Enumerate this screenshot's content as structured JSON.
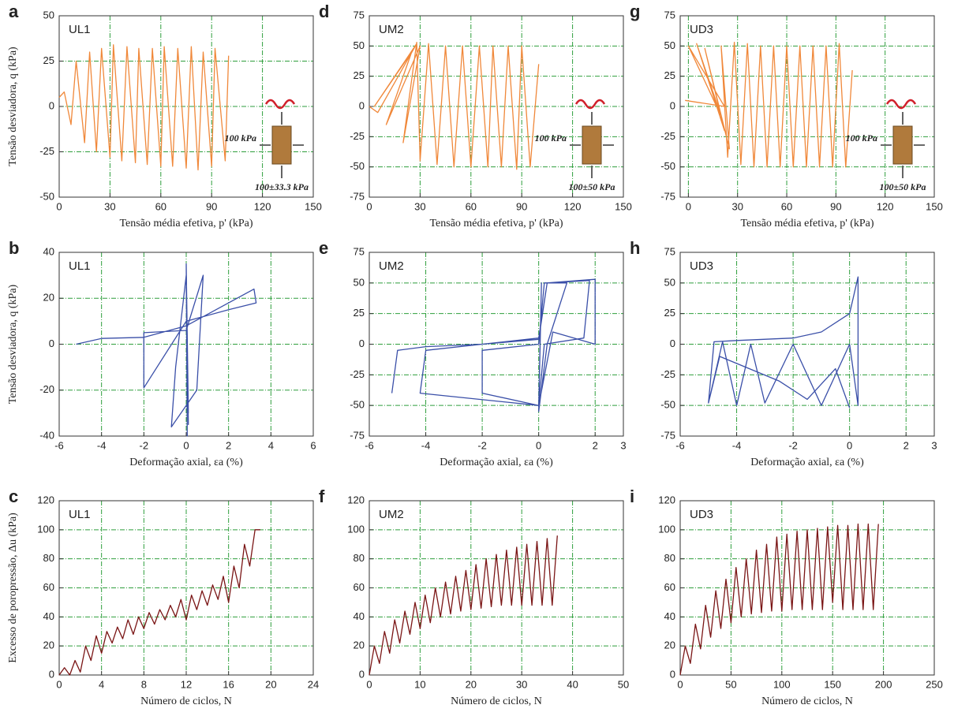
{
  "chart_data": [
    {
      "type": "line",
      "panel": "a",
      "annotation": "UL1",
      "xlabel": "Tensão média efetiva, p' (kPa)",
      "ylabel": "Tensão desviadora, q (kPa)",
      "inset_labels": [
        "100 kPa",
        "100±33.3 kPa"
      ],
      "xlim": [
        0,
        150
      ],
      "ylim": [
        -50,
        50
      ],
      "xticks": [
        0,
        30,
        60,
        90,
        120,
        150
      ],
      "yticks": [
        -50,
        -25,
        0,
        25,
        50
      ],
      "grid": true,
      "x": [
        100,
        98,
        92,
        90,
        85,
        82,
        78,
        75,
        70,
        67,
        62,
        60,
        55,
        52,
        47,
        45,
        40,
        37,
        32,
        30,
        25,
        22,
        18,
        15,
        10,
        7,
        3,
        0
      ],
      "series": [
        {
          "color": "#f0883a",
          "values": [
            28,
            -30,
            32,
            -33,
            30,
            -35,
            33,
            -34,
            32,
            -33,
            33,
            -33,
            32,
            -32,
            32,
            -31,
            33,
            -30,
            34,
            -28,
            32,
            -25,
            30,
            -20,
            25,
            -10,
            8,
            5
          ]
        }
      ]
    },
    {
      "type": "line",
      "panel": "d",
      "annotation": "UM2",
      "xlabel": "Tensão média efetiva, p' (kPa)",
      "inset_labels": [
        "100 kPa",
        "100±50 kPa"
      ],
      "xlim": [
        0,
        150
      ],
      "ylim": [
        -75,
        75
      ],
      "xticks": [
        0,
        30,
        60,
        90,
        120,
        150
      ],
      "yticks": [
        -75,
        -50,
        -25,
        0,
        25,
        50,
        75
      ],
      "grid": true,
      "x": [
        100,
        95,
        90,
        87,
        82,
        78,
        73,
        70,
        65,
        60,
        55,
        50,
        45,
        40,
        35,
        30,
        28,
        20,
        30,
        10,
        25,
        3,
        28,
        5,
        0
      ],
      "series": [
        {
          "color": "#f0883a",
          "values": [
            35,
            -50,
            50,
            -52,
            50,
            -50,
            50,
            -50,
            50,
            -50,
            50,
            -50,
            50,
            -48,
            52,
            -45,
            53,
            -30,
            50,
            -15,
            45,
            0,
            52,
            -5,
            0
          ]
        }
      ]
    },
    {
      "type": "line",
      "panel": "g",
      "annotation": "UD3",
      "xlabel": "Tensão média efetiva, p' (kPa)",
      "inset_labels": [
        "100 kPa",
        "100±50 kPa"
      ],
      "xlim": [
        -5,
        150
      ],
      "ylim": [
        -75,
        75
      ],
      "xticks": [
        0,
        30,
        60,
        90,
        120,
        150
      ],
      "yticks": [
        -75,
        -50,
        -25,
        0,
        25,
        50,
        75
      ],
      "grid": true,
      "x": [
        100,
        96,
        92,
        88,
        84,
        80,
        76,
        72,
        68,
        64,
        60,
        56,
        52,
        48,
        44,
        40,
        36,
        32,
        28,
        24,
        20,
        25,
        10,
        22,
        5,
        20,
        0,
        22,
        -2
      ],
      "series": [
        {
          "color": "#f0883a",
          "values": [
            30,
            -50,
            52,
            -50,
            50,
            -50,
            50,
            -50,
            50,
            -50,
            50,
            -50,
            50,
            -50,
            50,
            -50,
            52,
            -48,
            53,
            -42,
            50,
            -35,
            48,
            -20,
            52,
            -8,
            50,
            0,
            5
          ]
        }
      ]
    },
    {
      "type": "line",
      "panel": "b",
      "annotation": "UL1",
      "xlabel": "Deformação axial, εa (%)",
      "ylabel": "Tensão desviadora, q (kPa)",
      "xlim": [
        -6,
        6
      ],
      "ylim": [
        -40,
        40
      ],
      "xticks": [
        -6,
        -4,
        -2,
        0,
        2,
        4,
        6
      ],
      "yticks": [
        -40,
        -20,
        0,
        20,
        40
      ],
      "grid": true,
      "x": [
        -5.2,
        -4,
        -2,
        0,
        3.2,
        3.3,
        2,
        0,
        -2,
        -2,
        0,
        0.8,
        0.5,
        -0.7,
        -0.5,
        0,
        0.1,
        0,
        0.05,
        0,
        0.1,
        0
      ],
      "series": [
        {
          "color": "#3a4fa8",
          "values": [
            0,
            2.5,
            3,
            8,
            24,
            18,
            15,
            10,
            -19,
            5,
            6,
            30,
            -20,
            -36,
            -10,
            30,
            -35,
            35,
            -40,
            34,
            -30,
            25
          ]
        }
      ]
    },
    {
      "type": "line",
      "panel": "e",
      "annotation": "UM2",
      "xlabel": "Deformação axial, εa (%)",
      "xlim": [
        -6,
        3
      ],
      "ylim": [
        -75,
        75
      ],
      "xticks": [
        -6,
        -4,
        -2,
        0,
        2,
        3
      ],
      "yticks": [
        -75,
        -50,
        -25,
        0,
        25,
        50,
        75
      ],
      "grid": true,
      "x": [
        -5.2,
        -5,
        -4,
        -2,
        0,
        0.3,
        2,
        2,
        0.5,
        0,
        -4.2,
        -4,
        -2,
        0,
        0.3,
        1.8,
        1.6,
        0.2,
        0,
        -2,
        -2,
        0,
        0.2,
        1,
        0.3,
        0,
        0.1,
        0
      ],
      "series": [
        {
          "color": "#3a4fa8",
          "values": [
            -40,
            -5,
            -2,
            0,
            5,
            50,
            53,
            0,
            10,
            -50,
            -40,
            -5,
            0,
            4,
            50,
            52,
            5,
            0,
            -50,
            -40,
            -5,
            0,
            50,
            50,
            0,
            -55,
            50,
            -50
          ]
        }
      ]
    },
    {
      "type": "line",
      "panel": "h",
      "annotation": "UD3",
      "xlabel": "Deformação axial, εa (%)",
      "xlim": [
        -6,
        3
      ],
      "ylim": [
        -75,
        75
      ],
      "xticks": [
        -6,
        -4,
        -2,
        0,
        2,
        3
      ],
      "yticks": [
        -75,
        -50,
        -25,
        0,
        25,
        50,
        75
      ],
      "grid": true,
      "x": [
        -5,
        -4.8,
        -4,
        -2,
        -1,
        0,
        0.3,
        0.3,
        0,
        -1,
        -2,
        -3,
        -3.5,
        -4,
        -4.5,
        -5,
        -4.6,
        -2.5,
        -1.5,
        -0.5,
        0
      ],
      "series": [
        {
          "color": "#3a4fa8",
          "values": [
            -48,
            2,
            3,
            5,
            10,
            25,
            55,
            -50,
            0,
            -50,
            0,
            -48,
            0,
            -50,
            2,
            -48,
            -10,
            -30,
            -45,
            -20,
            -52
          ]
        }
      ]
    },
    {
      "type": "line",
      "panel": "c",
      "annotation": "UL1",
      "xlabel": "Número de ciclos, N",
      "ylabel": "Excesso de poropressão, Δu (kPa)",
      "xlim": [
        0,
        24
      ],
      "ylim": [
        0,
        120
      ],
      "xticks": [
        0,
        4,
        8,
        12,
        16,
        20,
        24
      ],
      "yticks": [
        0,
        20,
        40,
        60,
        80,
        100,
        120
      ],
      "grid": true,
      "x": [
        0,
        0.5,
        1,
        1.5,
        2,
        2.5,
        3,
        3.5,
        4,
        4.5,
        5,
        5.5,
        6,
        6.5,
        7,
        7.5,
        8,
        8.5,
        9,
        9.5,
        10,
        10.5,
        11,
        11.5,
        12,
        12.5,
        13,
        13.5,
        14,
        14.5,
        15,
        15.5,
        16,
        16.5,
        17,
        17.5,
        18,
        18.5,
        19
      ],
      "series": [
        {
          "color": "#7a1515",
          "values": [
            0,
            5,
            0,
            10,
            2,
            20,
            10,
            27,
            15,
            30,
            22,
            33,
            25,
            38,
            28,
            40,
            32,
            43,
            35,
            45,
            38,
            48,
            40,
            52,
            38,
            55,
            45,
            58,
            48,
            62,
            52,
            68,
            50,
            75,
            60,
            90,
            75,
            100,
            100
          ]
        }
      ]
    },
    {
      "type": "line",
      "panel": "f",
      "annotation": "UM2",
      "xlabel": "Número de ciclos, N",
      "xlim": [
        0,
        50
      ],
      "ylim": [
        0,
        120
      ],
      "xticks": [
        0,
        10,
        20,
        30,
        40,
        50
      ],
      "yticks": [
        0,
        20,
        40,
        60,
        80,
        100,
        120
      ],
      "grid": true,
      "x": [
        0,
        1,
        2,
        3,
        4,
        5,
        6,
        7,
        8,
        9,
        10,
        11,
        12,
        13,
        14,
        15,
        16,
        17,
        18,
        19,
        20,
        21,
        22,
        23,
        24,
        25,
        26,
        27,
        28,
        29,
        30,
        31,
        32,
        33,
        34,
        35,
        36,
        37
      ],
      "series": [
        {
          "color": "#7a1515",
          "values": [
            0,
            20,
            8,
            30,
            15,
            38,
            22,
            44,
            28,
            50,
            32,
            55,
            36,
            60,
            40,
            64,
            42,
            68,
            44,
            72,
            45,
            76,
            46,
            80,
            47,
            83,
            48,
            86,
            48,
            88,
            48,
            90,
            48,
            92,
            48,
            94,
            48,
            96
          ]
        }
      ]
    },
    {
      "type": "line",
      "panel": "i",
      "annotation": "UD3",
      "xlabel": "Número de ciclos, N",
      "xlim": [
        0,
        250
      ],
      "ylim": [
        0,
        120
      ],
      "xticks": [
        0,
        50,
        100,
        150,
        200,
        250
      ],
      "yticks": [
        0,
        20,
        40,
        60,
        80,
        100,
        120
      ],
      "grid": true,
      "x": [
        0,
        5,
        10,
        15,
        20,
        25,
        30,
        35,
        40,
        45,
        50,
        55,
        60,
        65,
        70,
        75,
        80,
        85,
        90,
        95,
        100,
        105,
        110,
        115,
        120,
        125,
        130,
        135,
        140,
        145,
        150,
        155,
        160,
        165,
        170,
        175,
        180,
        185,
        190,
        195
      ],
      "series": [
        {
          "color": "#7a1515",
          "values": [
            0,
            20,
            8,
            35,
            18,
            48,
            26,
            58,
            32,
            66,
            36,
            74,
            40,
            80,
            42,
            86,
            43,
            90,
            44,
            95,
            44,
            97,
            45,
            99,
            45,
            100,
            45,
            101,
            45,
            102,
            50,
            103,
            45,
            103,
            45,
            104,
            45,
            104,
            45,
            104
          ]
        }
      ]
    }
  ]
}
